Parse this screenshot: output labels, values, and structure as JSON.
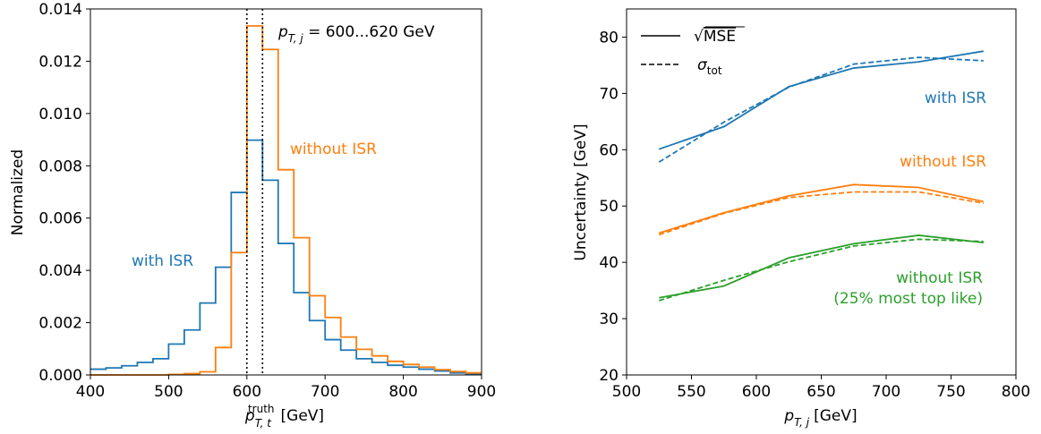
{
  "chart_data": [
    {
      "type": "histogram",
      "xlabel_main": "p",
      "xlabel_sup": "truth",
      "xlabel_sub": "T, t",
      "xlabel_unit": "[GeV]",
      "ylabel": "Normalized",
      "xlim": [
        400,
        900
      ],
      "ylim": [
        0,
        0.014
      ],
      "xticks": [
        "400",
        "500",
        "600",
        "700",
        "800",
        "900"
      ],
      "yticks": [
        "0.000",
        "0.002",
        "0.004",
        "0.006",
        "0.008",
        "0.010",
        "0.012",
        "0.014"
      ],
      "bin_edges": [
        400,
        420,
        440,
        460,
        480,
        500,
        520,
        540,
        560,
        580,
        600,
        620,
        640,
        660,
        680,
        700,
        720,
        740,
        760,
        780,
        800,
        820,
        840,
        860,
        880,
        900
      ],
      "series": [
        {
          "name": "with ISR",
          "color": "#1f77b4",
          "values": [
            0.00022,
            0.00027,
            0.00035,
            0.00048,
            0.00062,
            0.00118,
            0.00172,
            0.00275,
            0.00412,
            0.00698,
            0.00898,
            0.00745,
            0.00503,
            0.00315,
            0.00208,
            0.00135,
            0.00095,
            0.00062,
            0.00048,
            0.00037,
            0.0003,
            0.00022,
            0.00015,
            8e-05,
            5e-05
          ]
        },
        {
          "name": "without ISR",
          "color": "#ff7f0e",
          "values": [
            0.0,
            0.0,
            0.0,
            0.0,
            0.0,
            2e-05,
            5e-05,
            0.00012,
            0.00105,
            0.00468,
            0.01335,
            0.01245,
            0.00785,
            0.00525,
            0.00303,
            0.0022,
            0.00145,
            0.00098,
            0.00073,
            0.00052,
            0.0004,
            0.0003,
            0.0002,
            0.00013,
            8e-05
          ]
        }
      ],
      "vlines": [
        600,
        620
      ],
      "annotations": {
        "range_main": "p",
        "range_sub": "T, j",
        "range_rest": " = 600...620 GeV",
        "with_isr": "with ISR",
        "without_isr": "without ISR"
      }
    },
    {
      "type": "line",
      "xlabel_main": "p",
      "xlabel_sub": "T, j",
      "xlabel_unit": "[GeV]",
      "ylabel": "Uncertainty [GeV]",
      "xlim": [
        500,
        800
      ],
      "ylim": [
        20,
        85
      ],
      "xticks": [
        "500",
        "550",
        "600",
        "650",
        "700",
        "750",
        "800"
      ],
      "yticks": [
        "20",
        "30",
        "40",
        "50",
        "60",
        "70",
        "80"
      ],
      "x": [
        525,
        575,
        625,
        675,
        725,
        775
      ],
      "legend": {
        "solid_prefix": "√",
        "solid_label": "MSE",
        "dashed_main": "σ",
        "dashed_sub": "tot",
        "placement": "top-left"
      },
      "series": [
        {
          "name": "with ISR",
          "style": "solid",
          "color": "#1f77b4",
          "values": [
            60.1,
            64.1,
            71.2,
            74.5,
            75.6,
            77.5
          ]
        },
        {
          "name": "with ISR",
          "style": "dashed",
          "color": "#1f77b4",
          "values": [
            57.8,
            64.9,
            71.1,
            75.2,
            76.4,
            75.8
          ]
        },
        {
          "name": "without ISR",
          "style": "solid",
          "color": "#ff7f0e",
          "values": [
            45.2,
            48.8,
            51.8,
            53.8,
            53.3,
            50.8
          ]
        },
        {
          "name": "without ISR",
          "style": "dashed",
          "color": "#ff7f0e",
          "values": [
            44.9,
            48.7,
            51.5,
            52.5,
            52.5,
            50.5
          ]
        },
        {
          "name": "without ISR (25% most top like)",
          "style": "solid",
          "color": "#2ca02c",
          "values": [
            33.7,
            35.8,
            40.8,
            43.3,
            44.8,
            43.5
          ]
        },
        {
          "name": "without ISR (25% most top like)",
          "style": "dashed",
          "color": "#2ca02c",
          "values": [
            33.2,
            36.8,
            40.1,
            42.9,
            44.1,
            43.7
          ]
        }
      ],
      "annotations": {
        "with_isr": "with ISR",
        "without_isr": "without ISR",
        "green_line1": "without ISR",
        "green_line2": "(25% most top like)"
      }
    }
  ]
}
